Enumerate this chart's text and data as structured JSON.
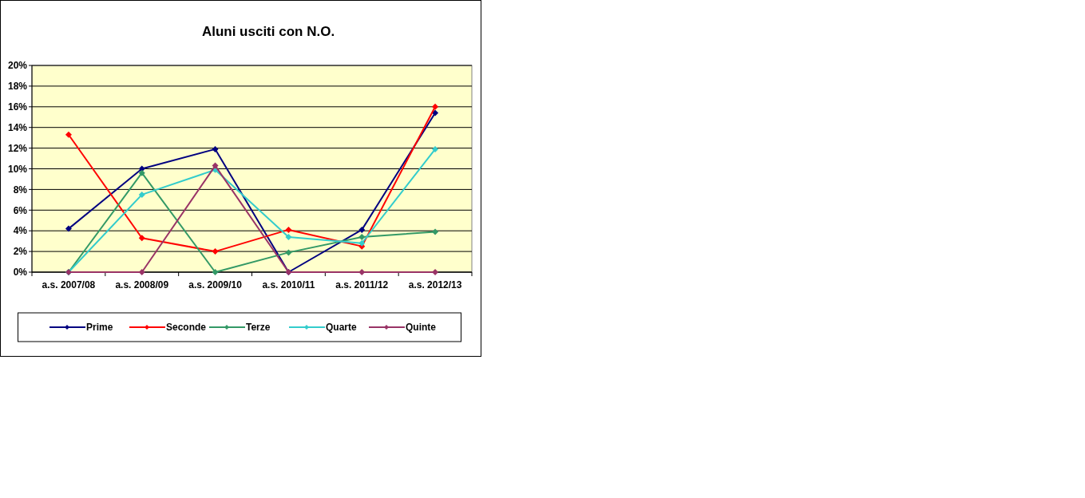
{
  "chart_data": {
    "type": "line",
    "title": "Aluni usciti con N.O.",
    "categories": [
      "a.s. 2007/08",
      "a.s. 2008/09",
      "a.s. 2009/10",
      "a.s. 2010/11",
      "a.s. 2011/12",
      "a.s. 2012/13"
    ],
    "series": [
      {
        "name": "Prime",
        "color": "#000080",
        "values": [
          4.2,
          10.0,
          11.9,
          0,
          4.1,
          15.4
        ]
      },
      {
        "name": "Seconde",
        "color": "#ff0000",
        "values": [
          13.3,
          3.3,
          2.0,
          4.1,
          2.5,
          16.0
        ]
      },
      {
        "name": "Terze",
        "color": "#339966",
        "values": [
          0,
          9.6,
          0,
          1.9,
          3.4,
          3.9
        ]
      },
      {
        "name": "Quarte",
        "color": "#33cccc",
        "values": [
          0,
          7.5,
          9.9,
          3.4,
          2.8,
          11.9
        ]
      },
      {
        "name": "Quinte",
        "color": "#993366",
        "values": [
          0,
          0,
          10.3,
          0,
          0,
          0
        ]
      }
    ],
    "ylim": [
      0,
      20
    ],
    "yticks": [
      {
        "value": 0,
        "label": "0%"
      },
      {
        "value": 2,
        "label": "2%"
      },
      {
        "value": 4,
        "label": "4%"
      },
      {
        "value": 6,
        "label": "6%"
      },
      {
        "value": 8,
        "label": "8%"
      },
      {
        "value": 10,
        "label": "10%"
      },
      {
        "value": 12,
        "label": "12%"
      },
      {
        "value": 14,
        "label": "14%"
      },
      {
        "value": 16,
        "label": "16%"
      },
      {
        "value": 18,
        "label": "18%"
      },
      {
        "value": 20,
        "label": "20%"
      }
    ],
    "grid": "y",
    "legend": "bottom",
    "marker": "diamond",
    "line_style": "solid"
  }
}
